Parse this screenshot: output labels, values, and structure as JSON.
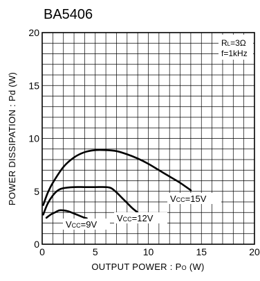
{
  "chart_data": {
    "type": "line",
    "title": "BA5406",
    "xlabel": "OUTPUT POWER : Po (W)",
    "ylabel": "POWER DISSIPATION : Pd (W)",
    "xlim": [
      0,
      20
    ],
    "ylim": [
      0,
      20
    ],
    "xticks": [
      "0",
      "5",
      "10",
      "15",
      "20"
    ],
    "yticks": [
      "0",
      "5",
      "10",
      "15",
      "20"
    ],
    "grid": true,
    "conditions": [
      "RL=3Ω",
      "f=1kHz"
    ],
    "series": [
      {
        "name": "Vcc=15V",
        "points": [
          [
            0.1,
            3.7
          ],
          [
            0.5,
            4.8
          ],
          [
            1,
            5.8
          ],
          [
            2,
            7.3
          ],
          [
            3,
            8.2
          ],
          [
            4,
            8.7
          ],
          [
            5,
            8.9
          ],
          [
            6,
            8.9
          ],
          [
            7,
            8.8
          ],
          [
            8,
            8.5
          ],
          [
            9,
            8.1
          ],
          [
            10,
            7.6
          ],
          [
            11,
            7.0
          ],
          [
            12,
            6.4
          ],
          [
            13,
            5.8
          ],
          [
            14,
            5.1
          ]
        ]
      },
      {
        "name": "Vcc=12V",
        "points": [
          [
            0.1,
            2.8
          ],
          [
            0.5,
            3.8
          ],
          [
            1,
            4.6
          ],
          [
            1.5,
            5.1
          ],
          [
            2,
            5.3
          ],
          [
            3,
            5.4
          ],
          [
            4,
            5.4
          ],
          [
            5,
            5.4
          ],
          [
            6,
            5.4
          ],
          [
            6.5,
            5.3
          ],
          [
            7,
            4.9
          ],
          [
            7.5,
            4.4
          ],
          [
            8,
            3.9
          ],
          [
            8.5,
            3.4
          ],
          [
            9,
            3.0
          ]
        ]
      },
      {
        "name": "Vcc=9V",
        "points": [
          [
            0.4,
            2.5
          ],
          [
            0.8,
            2.8
          ],
          [
            1.2,
            3.0
          ],
          [
            1.6,
            3.2
          ],
          [
            2,
            3.2
          ],
          [
            2.5,
            3.1
          ],
          [
            3,
            2.9
          ],
          [
            3.5,
            2.7
          ],
          [
            4,
            2.5
          ],
          [
            4.2,
            2.45
          ]
        ]
      }
    ]
  },
  "labels": {
    "vcc15_main": "V",
    "vcc15_sub": "CC",
    "vcc15_val": "=15V",
    "vcc12_main": "V",
    "vcc12_sub": "CC",
    "vcc12_val": "=12V",
    "vcc9_main": "V",
    "vcc9_sub": "CC",
    "vcc9_val": "=9V",
    "rl_main": "R",
    "rl_sub": "L",
    "rl_val": "=3Ω",
    "freq_main": "f",
    "freq_val": "=1kHz",
    "xlabel_main": "OUTPUT POWER : P",
    "xlabel_sub": "O",
    "xlabel_unit": " (W)"
  }
}
